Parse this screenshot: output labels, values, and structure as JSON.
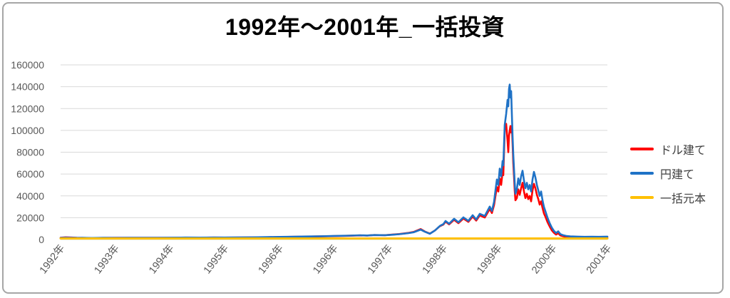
{
  "chart_data": {
    "type": "line",
    "title": "1992年～2001年_一括投資",
    "legend_position": "right",
    "grid": "horizontal-only",
    "x_axis": {
      "tick_labels": [
        "1992年",
        "1993年",
        "1994年",
        "1995年",
        "1996年",
        "1996年",
        "1997年",
        "1998年",
        "1999年",
        "2000年",
        "2001年"
      ]
    },
    "y_axis": {
      "min": 0,
      "max": 160000,
      "tick_step": 20000,
      "tick_labels": [
        "0",
        "20000",
        "40000",
        "60000",
        "80000",
        "100000",
        "120000",
        "140000",
        "160000"
      ]
    },
    "series": [
      {
        "name": "ドル建て",
        "color": "#FF0000",
        "points": [
          [
            0.0,
            1700
          ],
          [
            0.0091,
            2000
          ],
          [
            0.0196,
            1850
          ],
          [
            0.03,
            1600
          ],
          [
            0.0391,
            1500
          ],
          [
            0.0587,
            1400
          ],
          [
            0.0782,
            1500
          ],
          [
            0.1004,
            1550
          ],
          [
            0.1239,
            1650
          ],
          [
            0.1499,
            1600
          ],
          [
            0.176,
            1600
          ],
          [
            0.1995,
            1650
          ],
          [
            0.2282,
            1750
          ],
          [
            0.2542,
            1700
          ],
          [
            0.2803,
            1800
          ],
          [
            0.2999,
            1750
          ],
          [
            0.326,
            1850
          ],
          [
            0.352,
            1950
          ],
          [
            0.3781,
            2100
          ],
          [
            0.4003,
            2300
          ],
          [
            0.4237,
            2500
          ],
          [
            0.4498,
            2650
          ],
          [
            0.4759,
            2850
          ],
          [
            0.502,
            3150
          ],
          [
            0.528,
            3450
          ],
          [
            0.5476,
            3800
          ],
          [
            0.5606,
            3650
          ],
          [
            0.5737,
            4100
          ],
          [
            0.5932,
            4000
          ],
          [
            0.6063,
            4500
          ],
          [
            0.6193,
            5000
          ],
          [
            0.6362,
            6100
          ],
          [
            0.6454,
            6900
          ],
          [
            0.6584,
            9600
          ],
          [
            0.6662,
            7300
          ],
          [
            0.6754,
            5400
          ],
          [
            0.6845,
            8300
          ],
          [
            0.6936,
            12200
          ],
          [
            0.7001,
            13800
          ],
          [
            0.704,
            16300
          ],
          [
            0.7106,
            13900
          ],
          [
            0.7197,
            18100
          ],
          [
            0.7275,
            15000
          ],
          [
            0.7366,
            19200
          ],
          [
            0.7458,
            16200
          ],
          [
            0.7536,
            21000
          ],
          [
            0.7601,
            17400
          ],
          [
            0.7666,
            22200
          ],
          [
            0.7758,
            20200
          ],
          [
            0.7849,
            28000
          ],
          [
            0.7888,
            24300
          ],
          [
            0.7927,
            31500
          ],
          [
            0.7953,
            40000
          ],
          [
            0.7979,
            48000
          ],
          [
            0.8005,
            44000
          ],
          [
            0.8031,
            56000
          ],
          [
            0.8057,
            50000
          ],
          [
            0.8083,
            62000
          ],
          [
            0.8096,
            59000
          ],
          [
            0.8122,
            100000
          ],
          [
            0.8149,
            106000
          ],
          [
            0.8175,
            90000
          ],
          [
            0.8188,
            80000
          ],
          [
            0.8201,
            95000
          ],
          [
            0.8214,
            100000
          ],
          [
            0.8227,
            104000
          ],
          [
            0.824,
            98000
          ],
          [
            0.8253,
            104000
          ],
          [
            0.8266,
            88000
          ],
          [
            0.8279,
            70000
          ],
          [
            0.8292,
            58000
          ],
          [
            0.8305,
            45000
          ],
          [
            0.8318,
            36000
          ],
          [
            0.8344,
            38000
          ],
          [
            0.837,
            46000
          ],
          [
            0.8396,
            41000
          ],
          [
            0.8422,
            47000
          ],
          [
            0.8448,
            52000
          ],
          [
            0.8475,
            44000
          ],
          [
            0.8501,
            38000
          ],
          [
            0.8527,
            42000
          ],
          [
            0.8553,
            37000
          ],
          [
            0.8579,
            40000
          ],
          [
            0.8605,
            35000
          ],
          [
            0.8631,
            45000
          ],
          [
            0.8657,
            51000
          ],
          [
            0.8683,
            47000
          ],
          [
            0.871,
            41000
          ],
          [
            0.8736,
            37000
          ],
          [
            0.8762,
            32000
          ],
          [
            0.8788,
            35000
          ],
          [
            0.8814,
            29000
          ],
          [
            0.884,
            24000
          ],
          [
            0.8866,
            21000
          ],
          [
            0.8905,
            16000
          ],
          [
            0.8944,
            12000
          ],
          [
            0.8983,
            8500
          ],
          [
            0.9022,
            6200
          ],
          [
            0.9061,
            4600
          ],
          [
            0.91,
            5800
          ],
          [
            0.9139,
            3800
          ],
          [
            0.9191,
            3000
          ],
          [
            0.9257,
            2400
          ],
          [
            0.9322,
            2100
          ],
          [
            0.9452,
            2000
          ],
          [
            0.9583,
            1900
          ],
          [
            0.9713,
            2000
          ],
          [
            0.9843,
            1900
          ],
          [
            1.0,
            2000
          ]
        ]
      },
      {
        "name": "円建て",
        "color": "#1F72C6",
        "points": [
          [
            0.0,
            1500
          ],
          [
            0.0091,
            1700
          ],
          [
            0.0196,
            1600
          ],
          [
            0.03,
            1500
          ],
          [
            0.0391,
            1550
          ],
          [
            0.0587,
            1450
          ],
          [
            0.0782,
            1550
          ],
          [
            0.1004,
            1500
          ],
          [
            0.1239,
            1600
          ],
          [
            0.1499,
            1550
          ],
          [
            0.176,
            1650
          ],
          [
            0.1995,
            1700
          ],
          [
            0.2282,
            1800
          ],
          [
            0.2542,
            1750
          ],
          [
            0.2803,
            1850
          ],
          [
            0.2999,
            1800
          ],
          [
            0.326,
            1900
          ],
          [
            0.352,
            2000
          ],
          [
            0.3781,
            2200
          ],
          [
            0.4003,
            2400
          ],
          [
            0.4237,
            2600
          ],
          [
            0.4498,
            2800
          ],
          [
            0.4759,
            3000
          ],
          [
            0.502,
            3300
          ],
          [
            0.528,
            3600
          ],
          [
            0.5476,
            3900
          ],
          [
            0.5606,
            3700
          ],
          [
            0.5737,
            4100
          ],
          [
            0.5932,
            4000
          ],
          [
            0.6063,
            4400
          ],
          [
            0.6193,
            4900
          ],
          [
            0.6362,
            5900
          ],
          [
            0.6454,
            6600
          ],
          [
            0.6584,
            9100
          ],
          [
            0.6662,
            7100
          ],
          [
            0.6754,
            5300
          ],
          [
            0.6845,
            8200
          ],
          [
            0.6936,
            12500
          ],
          [
            0.7001,
            14200
          ],
          [
            0.704,
            17000
          ],
          [
            0.7106,
            14500
          ],
          [
            0.7197,
            19000
          ],
          [
            0.7275,
            15800
          ],
          [
            0.7366,
            20300
          ],
          [
            0.7458,
            17100
          ],
          [
            0.7536,
            22300
          ],
          [
            0.7601,
            18400
          ],
          [
            0.7666,
            23600
          ],
          [
            0.7758,
            21600
          ],
          [
            0.7849,
            30200
          ],
          [
            0.7888,
            26200
          ],
          [
            0.7927,
            34500
          ],
          [
            0.7953,
            45000
          ],
          [
            0.7979,
            55000
          ],
          [
            0.8005,
            50000
          ],
          [
            0.8031,
            65000
          ],
          [
            0.8057,
            58000
          ],
          [
            0.8083,
            72000
          ],
          [
            0.8096,
            68000
          ],
          [
            0.8122,
            105000
          ],
          [
            0.8149,
            115000
          ],
          [
            0.8175,
            128000
          ],
          [
            0.8188,
            122000
          ],
          [
            0.8201,
            138000
          ],
          [
            0.8214,
            142000
          ],
          [
            0.8227,
            130000
          ],
          [
            0.824,
            136000
          ],
          [
            0.8253,
            115000
          ],
          [
            0.8266,
            95000
          ],
          [
            0.8279,
            78000
          ],
          [
            0.8292,
            65000
          ],
          [
            0.8305,
            52000
          ],
          [
            0.8318,
            42000
          ],
          [
            0.8344,
            46000
          ],
          [
            0.837,
            56000
          ],
          [
            0.8396,
            50000
          ],
          [
            0.8422,
            58000
          ],
          [
            0.8448,
            63000
          ],
          [
            0.8475,
            54000
          ],
          [
            0.8501,
            47000
          ],
          [
            0.8527,
            52000
          ],
          [
            0.8553,
            46000
          ],
          [
            0.8579,
            50000
          ],
          [
            0.8605,
            44000
          ],
          [
            0.8631,
            55000
          ],
          [
            0.8657,
            62000
          ],
          [
            0.8683,
            57000
          ],
          [
            0.871,
            50000
          ],
          [
            0.8736,
            45000
          ],
          [
            0.8762,
            40000
          ],
          [
            0.8788,
            44000
          ],
          [
            0.8814,
            36000
          ],
          [
            0.884,
            30000
          ],
          [
            0.8866,
            26000
          ],
          [
            0.8905,
            20000
          ],
          [
            0.8944,
            15000
          ],
          [
            0.8983,
            11000
          ],
          [
            0.9022,
            8000
          ],
          [
            0.9061,
            6000
          ],
          [
            0.91,
            7500
          ],
          [
            0.9139,
            5000
          ],
          [
            0.9191,
            4000
          ],
          [
            0.9257,
            3200
          ],
          [
            0.9322,
            2900
          ],
          [
            0.9452,
            2700
          ],
          [
            0.9583,
            2500
          ],
          [
            0.9713,
            2600
          ],
          [
            0.9843,
            2500
          ],
          [
            1.0,
            2700
          ]
        ]
      },
      {
        "name": "一括元本",
        "color": "#FFC000",
        "constant_value": 1000,
        "points": [
          [
            0.0,
            1000
          ],
          [
            1.0,
            1000
          ]
        ]
      }
    ]
  },
  "colors": {
    "grid": "#D9D9D9",
    "axis_text": "#595959",
    "legend_text": "#404040",
    "frame_border": "#A6A6A6",
    "title_text": "#000000",
    "background": "#FFFFFF"
  }
}
